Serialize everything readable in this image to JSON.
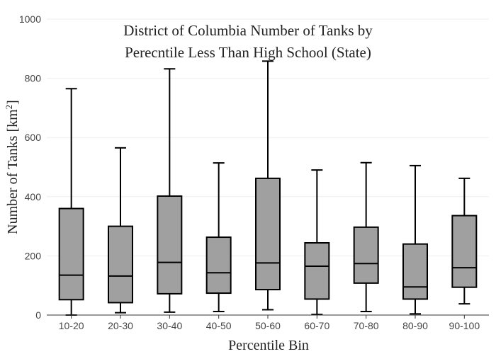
{
  "chart_data": {
    "type": "box",
    "title_lines": [
      "District of Columbia Number of Tanks by",
      "Perecntile Less Than High School (State)"
    ],
    "xlabel": "Percentile Bin",
    "ylabel": "Number of Tanks  [km",
    "ylabel_sup": "2",
    "ylabel_close": "]",
    "ylim": [
      0,
      1000
    ],
    "yticks": [
      0,
      200,
      400,
      600,
      800,
      1000
    ],
    "grid": true,
    "box_color": "#a0a0a0",
    "categories": [
      "10-20",
      "20-30",
      "30-40",
      "40-50",
      "50-60",
      "60-70",
      "70-80",
      "80-90",
      "90-100"
    ],
    "boxes": [
      {
        "min": 0,
        "q1": 52,
        "median": 135,
        "q3": 360,
        "max": 765
      },
      {
        "min": 8,
        "q1": 42,
        "median": 132,
        "q3": 300,
        "max": 565
      },
      {
        "min": 10,
        "q1": 72,
        "median": 178,
        "q3": 402,
        "max": 832
      },
      {
        "min": 12,
        "q1": 74,
        "median": 143,
        "q3": 263,
        "max": 514
      },
      {
        "min": 18,
        "q1": 86,
        "median": 176,
        "q3": 462,
        "max": 858
      },
      {
        "min": 2,
        "q1": 54,
        "median": 165,
        "q3": 244,
        "max": 490
      },
      {
        "min": 12,
        "q1": 108,
        "median": 174,
        "q3": 297,
        "max": 515
      },
      {
        "min": 4,
        "q1": 54,
        "median": 95,
        "q3": 240,
        "max": 505
      },
      {
        "min": 38,
        "q1": 94,
        "median": 160,
        "q3": 336,
        "max": 462
      }
    ]
  }
}
